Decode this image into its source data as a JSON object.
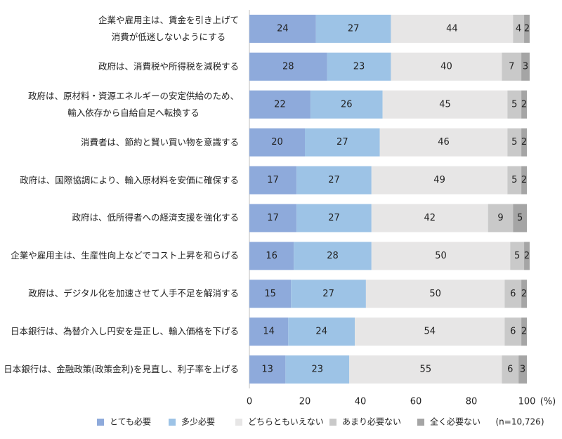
{
  "chart_data": {
    "type": "stacked-barh",
    "categories": [
      "企業や雇用主は、賃金を引き上げて\n消費が低迷しないようにする",
      "政府は、消費税や所得税を減税する",
      "政府は、原材料・資源エネルギーの安定供給のため、\n輸入依存から自給自足へ転換する",
      "消費者は、節約と賢い買い物を意識する",
      "政府は、国際協調により、輸入原材料を安価に確保する",
      "政府は、低所得者への経済支援を強化する",
      "企業や雇用主は、生産性向上などでコスト上昇を和らげる",
      "政府は、デジタル化を加速させて人手不足を解消する",
      "日本銀行は、為替介入し円安を是正し、輸入価格を下げる",
      "日本銀行は、金融政策(政策金利)を見直し、利子率を上げる"
    ],
    "series": [
      {
        "name": "とても必要",
        "color": "#8eaadb",
        "values": [
          24,
          28,
          22,
          20,
          17,
          17,
          16,
          15,
          14,
          13
        ]
      },
      {
        "name": "多少必要",
        "color": "#9dc3e6",
        "values": [
          27,
          23,
          26,
          27,
          27,
          27,
          28,
          27,
          24,
          23
        ]
      },
      {
        "name": "どちらともいえない",
        "color": "#e7e6e6",
        "values": [
          44,
          40,
          45,
          46,
          49,
          42,
          50,
          50,
          54,
          55
        ]
      },
      {
        "name": "あまり必要ない",
        "color": "#c9c9c9",
        "values": [
          4,
          7,
          5,
          5,
          5,
          9,
          5,
          6,
          6,
          6
        ]
      },
      {
        "name": "全く必要ない",
        "color": "#a5a5a5",
        "values": [
          2,
          3,
          2,
          2,
          2,
          5,
          2,
          2,
          2,
          3
        ]
      }
    ],
    "xlim": [
      0,
      100
    ],
    "xticks": [
      0,
      20,
      40,
      60,
      80,
      100
    ],
    "xlabel": "(%)",
    "annotation": "(n=10,726)",
    "grid": false
  }
}
